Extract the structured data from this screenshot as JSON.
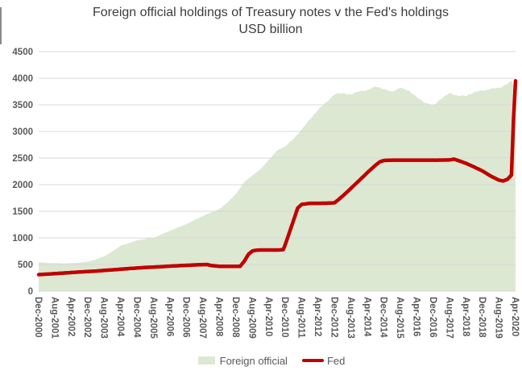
{
  "chart": {
    "title": "Foreign official holdings of Treasury notes v the Fed's holdings",
    "subtitle": "USD billion",
    "legend": [
      {
        "label": "Foreign official",
        "color": "#dce8d1",
        "type": "area"
      },
      {
        "label": "Fed",
        "color": "#c00000",
        "type": "line"
      }
    ]
  },
  "chart_data": {
    "type": "area+line",
    "title": "Foreign official holdings of Treasury notes v the Fed's holdings",
    "subtitle": "USD billion",
    "x_unit": "month",
    "x_range": [
      "Dec-2000",
      "Apr-2020"
    ],
    "x_tick_labels": [
      "Dec-2000",
      "Aug-2001",
      "Apr-2002",
      "Dec-2002",
      "Aug-2003",
      "Apr-2004",
      "Dec-2004",
      "Aug-2005",
      "Apr-2006",
      "Dec-2006",
      "Aug-2007",
      "Apr-2008",
      "Dec-2008",
      "Aug-2009",
      "Apr-2010",
      "Dec-2010",
      "Aug-2011",
      "Apr-2012",
      "Dec-2012",
      "Aug-2013",
      "Apr-2014",
      "Dec-2014",
      "Aug-2015",
      "Apr-2016",
      "Dec-2016",
      "Aug-2017",
      "Apr-2018",
      "Dec-2018",
      "Aug-2019",
      "Apr-2020"
    ],
    "ylim": [
      0,
      4500
    ],
    "y_ticks": [
      0,
      500,
      1000,
      1500,
      2000,
      2500,
      3000,
      3500,
      4000,
      4500
    ],
    "grid": true,
    "grid_color": "#d9d9d9",
    "axis_text_color": "#595959",
    "legend_position": "bottom",
    "series": [
      {
        "name": "Foreign official",
        "type": "area",
        "color": "#dce8d1",
        "points": [
          [
            "Dec-2000",
            540
          ],
          [
            "Apr-2001",
            530
          ],
          [
            "Aug-2001",
            525
          ],
          [
            "Dec-2001",
            520
          ],
          [
            "Apr-2002",
            525
          ],
          [
            "Aug-2002",
            535
          ],
          [
            "Dec-2002",
            555
          ],
          [
            "Apr-2003",
            600
          ],
          [
            "Aug-2003",
            655
          ],
          [
            "Dec-2003",
            750
          ],
          [
            "Apr-2004",
            855
          ],
          [
            "Aug-2004",
            905
          ],
          [
            "Dec-2004",
            955
          ],
          [
            "Apr-2005",
            980
          ],
          [
            "Aug-2005",
            1005
          ],
          [
            "Dec-2005",
            1070
          ],
          [
            "Apr-2006",
            1135
          ],
          [
            "Aug-2006",
            1200
          ],
          [
            "Dec-2006",
            1260
          ],
          [
            "Apr-2007",
            1340
          ],
          [
            "Aug-2007",
            1415
          ],
          [
            "Dec-2007",
            1480
          ],
          [
            "Apr-2008",
            1545
          ],
          [
            "Aug-2008",
            1670
          ],
          [
            "Dec-2008",
            1830
          ],
          [
            "Apr-2009",
            2050
          ],
          [
            "Aug-2009",
            2175
          ],
          [
            "Dec-2009",
            2290
          ],
          [
            "Apr-2010",
            2470
          ],
          [
            "Aug-2010",
            2640
          ],
          [
            "Dec-2010",
            2720
          ],
          [
            "Apr-2011",
            2860
          ],
          [
            "Aug-2011",
            3040
          ],
          [
            "Dec-2011",
            3230
          ],
          [
            "Apr-2012",
            3410
          ],
          [
            "Aug-2012",
            3550
          ],
          [
            "Dec-2012",
            3700
          ],
          [
            "Apr-2013",
            3720
          ],
          [
            "Aug-2013",
            3690
          ],
          [
            "Dec-2013",
            3760
          ],
          [
            "Apr-2014",
            3770
          ],
          [
            "Aug-2014",
            3850
          ],
          [
            "Dec-2014",
            3790
          ],
          [
            "Apr-2015",
            3750
          ],
          [
            "Aug-2015",
            3820
          ],
          [
            "Dec-2015",
            3770
          ],
          [
            "Apr-2016",
            3640
          ],
          [
            "Aug-2016",
            3540
          ],
          [
            "Dec-2016",
            3490
          ],
          [
            "Apr-2017",
            3620
          ],
          [
            "Aug-2017",
            3720
          ],
          [
            "Dec-2017",
            3670
          ],
          [
            "Apr-2018",
            3670
          ],
          [
            "Aug-2018",
            3740
          ],
          [
            "Dec-2018",
            3770
          ],
          [
            "Apr-2019",
            3800
          ],
          [
            "Aug-2019",
            3820
          ],
          [
            "Dec-2019",
            3890
          ],
          [
            "Feb-2020",
            3945
          ],
          [
            "Mar-2020",
            3870
          ],
          [
            "Apr-2020",
            3895
          ]
        ]
      },
      {
        "name": "Fed",
        "type": "line",
        "color": "#c00000",
        "stroke_width": 4.5,
        "points": [
          [
            "Dec-2000",
            310
          ],
          [
            "Apr-2001",
            320
          ],
          [
            "Aug-2001",
            330
          ],
          [
            "Dec-2001",
            340
          ],
          [
            "Apr-2002",
            350
          ],
          [
            "Aug-2002",
            360
          ],
          [
            "Dec-2002",
            368
          ],
          [
            "Apr-2003",
            378
          ],
          [
            "Aug-2003",
            390
          ],
          [
            "Dec-2003",
            400
          ],
          [
            "Apr-2004",
            412
          ],
          [
            "Aug-2004",
            424
          ],
          [
            "Dec-2004",
            435
          ],
          [
            "Apr-2005",
            445
          ],
          [
            "Aug-2005",
            452
          ],
          [
            "Dec-2005",
            460
          ],
          [
            "Apr-2006",
            470
          ],
          [
            "Aug-2006",
            478
          ],
          [
            "Dec-2006",
            485
          ],
          [
            "Apr-2007",
            492
          ],
          [
            "Aug-2007",
            498
          ],
          [
            "Oct-2007",
            500
          ],
          [
            "Dec-2007",
            480
          ],
          [
            "Apr-2008",
            467
          ],
          [
            "Aug-2008",
            465
          ],
          [
            "Dec-2008",
            465
          ],
          [
            "Feb-2009",
            467
          ],
          [
            "Apr-2009",
            560
          ],
          [
            "Jun-2009",
            690
          ],
          [
            "Aug-2009",
            755
          ],
          [
            "Oct-2009",
            770
          ],
          [
            "Dec-2009",
            772
          ],
          [
            "Apr-2010",
            772
          ],
          [
            "Aug-2010",
            772
          ],
          [
            "Nov-2010",
            780
          ],
          [
            "Dec-2010",
            880
          ],
          [
            "Apr-2011",
            1330
          ],
          [
            "Jun-2011",
            1560
          ],
          [
            "Aug-2011",
            1630
          ],
          [
            "Dec-2011",
            1650
          ],
          [
            "Apr-2012",
            1650
          ],
          [
            "Aug-2012",
            1652
          ],
          [
            "Dec-2012",
            1660
          ],
          [
            "Apr-2013",
            1790
          ],
          [
            "Aug-2013",
            1935
          ],
          [
            "Dec-2013",
            2080
          ],
          [
            "Apr-2014",
            2230
          ],
          [
            "Aug-2014",
            2370
          ],
          [
            "Oct-2014",
            2430
          ],
          [
            "Dec-2014",
            2455
          ],
          [
            "Apr-2015",
            2460
          ],
          [
            "Aug-2015",
            2460
          ],
          [
            "Dec-2015",
            2460
          ],
          [
            "Apr-2016",
            2460
          ],
          [
            "Aug-2016",
            2460
          ],
          [
            "Dec-2016",
            2460
          ],
          [
            "Apr-2017",
            2462
          ],
          [
            "Aug-2017",
            2465
          ],
          [
            "Oct-2017",
            2480
          ],
          [
            "Dec-2017",
            2455
          ],
          [
            "Apr-2018",
            2400
          ],
          [
            "Aug-2018",
            2330
          ],
          [
            "Dec-2018",
            2255
          ],
          [
            "Apr-2019",
            2160
          ],
          [
            "Aug-2019",
            2085
          ],
          [
            "Oct-2019",
            2070
          ],
          [
            "Dec-2019",
            2100
          ],
          [
            "Feb-2020",
            2180
          ],
          [
            "Mar-2020",
            3200
          ],
          [
            "Apr-2020",
            3950
          ]
        ]
      }
    ]
  }
}
